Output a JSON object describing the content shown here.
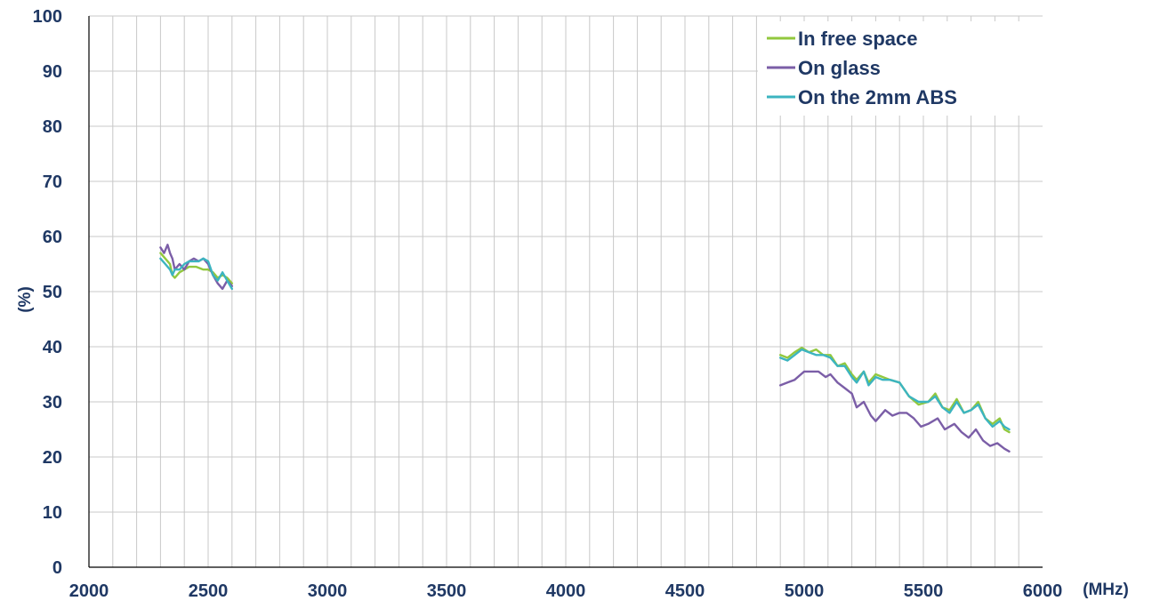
{
  "chart_data": {
    "type": "line",
    "title": "",
    "xlabel": "(MHz)",
    "ylabel": "(%)",
    "xlim": [
      2000,
      6000
    ],
    "ylim": [
      0,
      100
    ],
    "x_ticks": [
      2000,
      2500,
      3000,
      3500,
      4000,
      4500,
      5000,
      5500,
      6000
    ],
    "y_ticks": [
      0,
      10,
      20,
      30,
      40,
      50,
      60,
      70,
      80,
      90,
      100
    ],
    "x_minor_step": 100,
    "grid": true,
    "legend_position": "top-right",
    "series": [
      {
        "name": "In free space",
        "color": "#92c83e",
        "segments": [
          [
            [
              2300,
              57
            ],
            [
              2320,
              56
            ],
            [
              2340,
              55
            ],
            [
              2350,
              53
            ],
            [
              2360,
              52.5
            ],
            [
              2380,
              53.5
            ],
            [
              2400,
              54
            ],
            [
              2420,
              54.5
            ],
            [
              2450,
              54.5
            ],
            [
              2480,
              54
            ],
            [
              2500,
              54
            ],
            [
              2520,
              53.5
            ],
            [
              2540,
              52.5
            ],
            [
              2560,
              53
            ],
            [
              2580,
              52.5
            ],
            [
              2600,
              51.5
            ]
          ],
          [
            [
              4900,
              38.5
            ],
            [
              4930,
              38
            ],
            [
              4960,
              39
            ],
            [
              4990,
              39.8
            ],
            [
              5020,
              39
            ],
            [
              5050,
              39.5
            ],
            [
              5080,
              38.5
            ],
            [
              5110,
              38.5
            ],
            [
              5140,
              36.5
            ],
            [
              5170,
              37
            ],
            [
              5200,
              35
            ],
            [
              5220,
              34
            ],
            [
              5250,
              35.5
            ],
            [
              5270,
              33.5
            ],
            [
              5300,
              35
            ],
            [
              5330,
              34.5
            ],
            [
              5360,
              34
            ],
            [
              5400,
              33.5
            ],
            [
              5440,
              31
            ],
            [
              5480,
              29.5
            ],
            [
              5520,
              30
            ],
            [
              5550,
              31.5
            ],
            [
              5580,
              29
            ],
            [
              5610,
              28.5
            ],
            [
              5640,
              30.5
            ],
            [
              5670,
              28
            ],
            [
              5700,
              28.5
            ],
            [
              5730,
              30
            ],
            [
              5760,
              27
            ],
            [
              5790,
              26
            ],
            [
              5820,
              27
            ],
            [
              5840,
              25
            ],
            [
              5860,
              24.5
            ]
          ]
        ]
      },
      {
        "name": "On glass",
        "color": "#7b5ea7",
        "segments": [
          [
            [
              2300,
              58
            ],
            [
              2315,
              57
            ],
            [
              2330,
              58.5
            ],
            [
              2340,
              57
            ],
            [
              2350,
              56
            ],
            [
              2360,
              54
            ],
            [
              2380,
              55
            ],
            [
              2400,
              54
            ],
            [
              2420,
              55.5
            ],
            [
              2440,
              56
            ],
            [
              2460,
              55.5
            ],
            [
              2480,
              56
            ],
            [
              2500,
              55
            ],
            [
              2520,
              53
            ],
            [
              2540,
              51.5
            ],
            [
              2560,
              50.5
            ],
            [
              2580,
              52
            ],
            [
              2600,
              51
            ]
          ],
          [
            [
              4900,
              33
            ],
            [
              4930,
              33.5
            ],
            [
              4960,
              34
            ],
            [
              5000,
              35.5
            ],
            [
              5030,
              35.5
            ],
            [
              5060,
              35.5
            ],
            [
              5090,
              34.5
            ],
            [
              5110,
              35
            ],
            [
              5140,
              33.5
            ],
            [
              5170,
              32.5
            ],
            [
              5200,
              31.5
            ],
            [
              5220,
              29
            ],
            [
              5250,
              30
            ],
            [
              5280,
              27.5
            ],
            [
              5300,
              26.5
            ],
            [
              5340,
              28.5
            ],
            [
              5370,
              27.5
            ],
            [
              5400,
              28
            ],
            [
              5430,
              28
            ],
            [
              5460,
              27
            ],
            [
              5490,
              25.5
            ],
            [
              5520,
              26
            ],
            [
              5560,
              27
            ],
            [
              5590,
              25
            ],
            [
              5630,
              26
            ],
            [
              5660,
              24.5
            ],
            [
              5690,
              23.5
            ],
            [
              5720,
              25
            ],
            [
              5750,
              23
            ],
            [
              5780,
              22
            ],
            [
              5810,
              22.5
            ],
            [
              5840,
              21.5
            ],
            [
              5860,
              21
            ]
          ]
        ]
      },
      {
        "name": "On the 2mm ABS",
        "color": "#3cb4c0",
        "segments": [
          [
            [
              2300,
              56
            ],
            [
              2320,
              55
            ],
            [
              2340,
              54
            ],
            [
              2350,
              53
            ],
            [
              2360,
              54
            ],
            [
              2380,
              54
            ],
            [
              2400,
              55
            ],
            [
              2420,
              55.5
            ],
            [
              2440,
              55.5
            ],
            [
              2460,
              55.5
            ],
            [
              2480,
              56
            ],
            [
              2500,
              55.5
            ],
            [
              2520,
              53
            ],
            [
              2540,
              52
            ],
            [
              2560,
              53.5
            ],
            [
              2580,
              52
            ],
            [
              2600,
              50.5
            ]
          ],
          [
            [
              4900,
              38
            ],
            [
              4930,
              37.5
            ],
            [
              4960,
              38.5
            ],
            [
              4990,
              39.5
            ],
            [
              5020,
              39
            ],
            [
              5050,
              38.5
            ],
            [
              5080,
              38.5
            ],
            [
              5110,
              38
            ],
            [
              5140,
              36.5
            ],
            [
              5170,
              36.5
            ],
            [
              5200,
              34.5
            ],
            [
              5220,
              33.5
            ],
            [
              5250,
              35.5
            ],
            [
              5270,
              33
            ],
            [
              5300,
              34.5
            ],
            [
              5330,
              34
            ],
            [
              5360,
              34
            ],
            [
              5400,
              33.5
            ],
            [
              5440,
              31
            ],
            [
              5480,
              30
            ],
            [
              5520,
              30
            ],
            [
              5550,
              31
            ],
            [
              5580,
              29
            ],
            [
              5610,
              28
            ],
            [
              5640,
              30
            ],
            [
              5670,
              28
            ],
            [
              5700,
              28.5
            ],
            [
              5730,
              29.5
            ],
            [
              5760,
              27
            ],
            [
              5790,
              25.5
            ],
            [
              5820,
              26.5
            ],
            [
              5840,
              25.5
            ],
            [
              5860,
              25
            ]
          ]
        ]
      }
    ]
  }
}
